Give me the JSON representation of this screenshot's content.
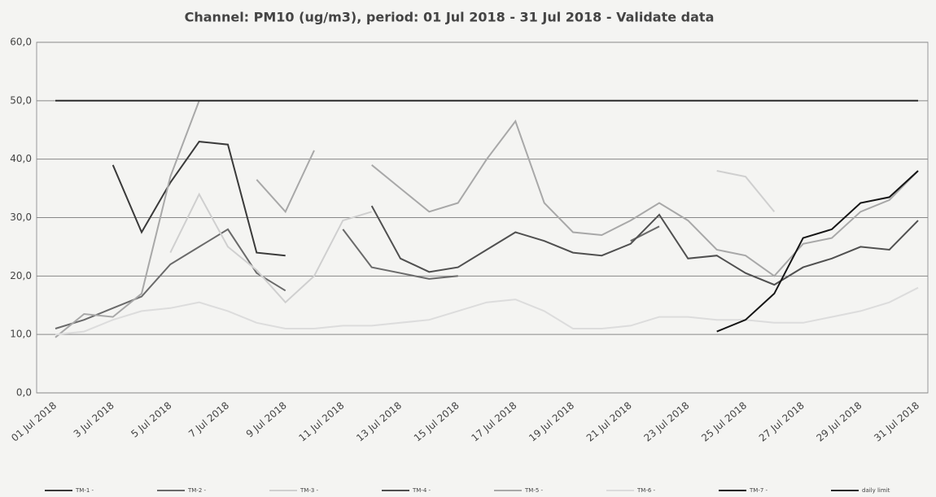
{
  "chart_data": {
    "type": "line",
    "title": "Channel: PM10 (ug/m3), period: 01 Jul 2018 - 31 Jul 2018 - Validate data",
    "categories": [
      "01 Jul 2018",
      null,
      "3 Jul 2018",
      null,
      "5 Jul 2018",
      null,
      "7 Jul 2018",
      null,
      "9 Jul 2018",
      null,
      "11 Jul 2018",
      null,
      "13 Jul 2018",
      null,
      "15 Jul 2018",
      null,
      "17 Jul 2018",
      null,
      "19 Jul 2018",
      null,
      "21 Jul 2018",
      null,
      "23 Jul 2018",
      null,
      "25 Jul 2018",
      null,
      "27 Jul 2018",
      null,
      "29 Jul 2018",
      null,
      "31 Jul 2018"
    ],
    "ylim": [
      0,
      60
    ],
    "yticks": [
      {
        "value": 0,
        "label": "0,0"
      },
      {
        "value": 10,
        "label": "10,0"
      },
      {
        "value": 20,
        "label": "20,0"
      },
      {
        "value": 30,
        "label": "30,0"
      },
      {
        "value": 40,
        "label": "40,0"
      },
      {
        "value": 50,
        "label": "50,0"
      },
      {
        "value": 60,
        "label": "60,0"
      }
    ],
    "grid": true,
    "legend": "bottom",
    "series": [
      {
        "name": "TM-1 -",
        "color": "#3a3a3a",
        "values": [
          null,
          null,
          39,
          27.5,
          36,
          43,
          42.5,
          24,
          23.5,
          null,
          null,
          null,
          null,
          null,
          null,
          null,
          null,
          null,
          null,
          null,
          null,
          null,
          null,
          null,
          null,
          null,
          null,
          null,
          null,
          null,
          null
        ]
      },
      {
        "name": "TM-2 -",
        "color": "#6a6a6a",
        "values": [
          11,
          12.5,
          14.5,
          16.5,
          22,
          25,
          28,
          20.5,
          17.5,
          null,
          28,
          21.5,
          20.5,
          19.5,
          20,
          null,
          null,
          null,
          null,
          null,
          26,
          28.5,
          null,
          null,
          null,
          null,
          null,
          null,
          null,
          null,
          null
        ]
      },
      {
        "name": "TM-3 -",
        "color": "#cfcfcf",
        "values": [
          null,
          null,
          null,
          null,
          24,
          34,
          25,
          21,
          15.5,
          20,
          29.5,
          31,
          null,
          null,
          null,
          null,
          null,
          null,
          null,
          null,
          null,
          null,
          null,
          38,
          37,
          31,
          null,
          null,
          null,
          null,
          null
        ]
      },
      {
        "name": "TM-4 -",
        "color": "#505050",
        "values": [
          null,
          null,
          null,
          null,
          null,
          null,
          null,
          null,
          null,
          null,
          null,
          32,
          23,
          20.7,
          21.5,
          24.5,
          27.5,
          26,
          24,
          23.5,
          25.5,
          30.5,
          23,
          23.5,
          20.5,
          18.5,
          21.5,
          23,
          25,
          24.5,
          29.5
        ]
      },
      {
        "name": "TM-5 -",
        "color": "#a8a8a8",
        "values": [
          9.5,
          13.5,
          13,
          17,
          37,
          50,
          null,
          36.5,
          31,
          41.5,
          null,
          39,
          35,
          31,
          32.5,
          40,
          46.5,
          32.5,
          27.5,
          27,
          29.5,
          32.5,
          29.5,
          24.5,
          23.5,
          20,
          25.5,
          26.5,
          31,
          33,
          38
        ]
      },
      {
        "name": "TM-6 -",
        "color": "#dcdcdc",
        "values": [
          10,
          10.5,
          12.5,
          14,
          14.5,
          15.5,
          14,
          12,
          11,
          11,
          11.5,
          11.5,
          12,
          12.5,
          14,
          15.5,
          16,
          14,
          11,
          11,
          11.5,
          13,
          13,
          12.5,
          12.5,
          12,
          12,
          13,
          14,
          15.5,
          18
        ]
      },
      {
        "name": "TM-7 -",
        "color": "#151515",
        "values": [
          null,
          null,
          null,
          null,
          null,
          null,
          null,
          null,
          null,
          null,
          null,
          null,
          null,
          null,
          null,
          null,
          null,
          null,
          null,
          null,
          null,
          null,
          null,
          10.5,
          12.5,
          17,
          26.5,
          28,
          32.5,
          33.5,
          38
        ]
      },
      {
        "name": "daily limit",
        "color": "#2a2a2a",
        "values": [
          50,
          50,
          50,
          50,
          50,
          50,
          50,
          50,
          50,
          50,
          50,
          50,
          50,
          50,
          50,
          50,
          50,
          50,
          50,
          50,
          50,
          50,
          50,
          50,
          50,
          50,
          50,
          50,
          50,
          50,
          50
        ]
      }
    ]
  }
}
